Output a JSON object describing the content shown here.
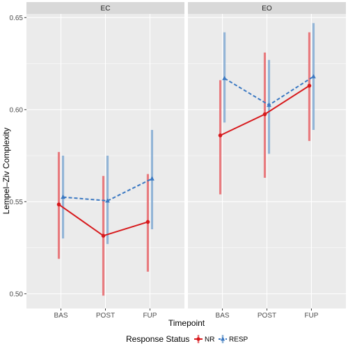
{
  "chart_data": {
    "type": "line",
    "ylabel": "Lempel–Ziv Complexity",
    "xlabel": "Timepoint",
    "categories": [
      "BAS",
      "POST",
      "FUP"
    ],
    "ylim": [
      0.492,
      0.652
    ],
    "y_ticks": [
      "0.50",
      "0.55",
      "0.60",
      "0.65"
    ],
    "y_tick_values": [
      0.5,
      0.55,
      0.6,
      0.65
    ],
    "legend": {
      "title": "Response Status",
      "position": "bottom"
    },
    "colors": {
      "NR": "#d7191c",
      "RESP": "#3a78c2",
      "NR_bar": "#e8767a",
      "RESP_bar": "#8fb3d6",
      "panel_bg": "#ebebeb",
      "strip_bg": "#d9d9d9",
      "grid": "#ffffff"
    },
    "panels": [
      {
        "label": "EC",
        "series": [
          {
            "name": "NR",
            "line": "solid",
            "marker": "circle",
            "values": [
              0.5485,
              0.5315,
              0.539
            ],
            "lower": [
              0.519,
              0.499,
              0.512
            ],
            "upper": [
              0.577,
              0.564,
              0.565
            ]
          },
          {
            "name": "RESP",
            "line": "dashed",
            "marker": "triangle",
            "values": [
              0.5525,
              0.5505,
              0.5625
            ],
            "lower": [
              0.53,
              0.527,
              0.535
            ],
            "upper": [
              0.575,
              0.575,
              0.589
            ]
          }
        ]
      },
      {
        "label": "EO",
        "series": [
          {
            "name": "NR",
            "line": "solid",
            "marker": "circle",
            "values": [
              0.586,
              0.5975,
              0.613
            ],
            "lower": [
              0.554,
              0.563,
              0.583
            ],
            "upper": [
              0.616,
              0.631,
              0.642
            ]
          },
          {
            "name": "RESP",
            "line": "dashed",
            "marker": "triangle",
            "values": [
              0.617,
              0.6025,
              0.618
            ],
            "lower": [
              0.593,
              0.576,
              0.589
            ],
            "upper": [
              0.642,
              0.627,
              0.647
            ]
          }
        ]
      }
    ]
  }
}
